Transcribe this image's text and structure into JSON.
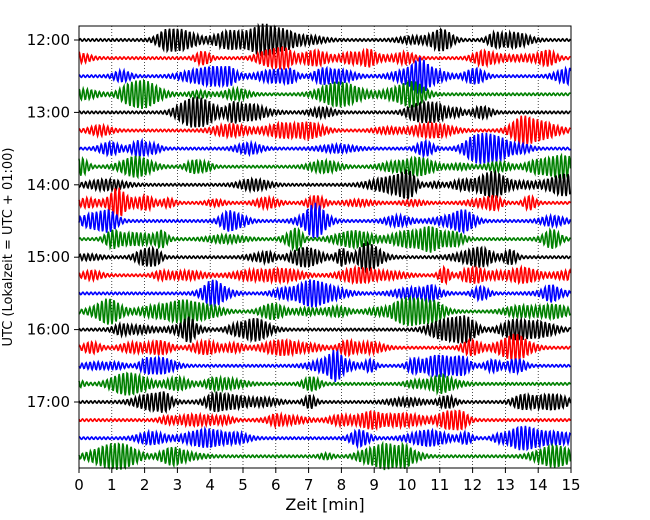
{
  "chart_data": {
    "type": "line",
    "title": "",
    "xlabel": "Zeit  [min]",
    "ylabel": "UTC (Lokalzeit = UTC + 01:00)",
    "xlim": [
      0,
      15
    ],
    "x_ticks": [
      "0",
      "1",
      "2",
      "3",
      "4",
      "5",
      "6",
      "7",
      "8",
      "9",
      "10",
      "11",
      "12",
      "13",
      "14",
      "15"
    ],
    "y_ticks": [
      "12:00",
      "13:00",
      "14:00",
      "15:00",
      "16:00",
      "17:00"
    ],
    "trace_minutes_per_row": 15,
    "rows_per_hour": 4,
    "row_count": 24,
    "first_row_time": "12:00",
    "trace_colors": [
      "#000000",
      "#ff0000",
      "#0000ff",
      "#008000"
    ],
    "grid": "vertical dotted lines at each minute",
    "legend": "none"
  }
}
